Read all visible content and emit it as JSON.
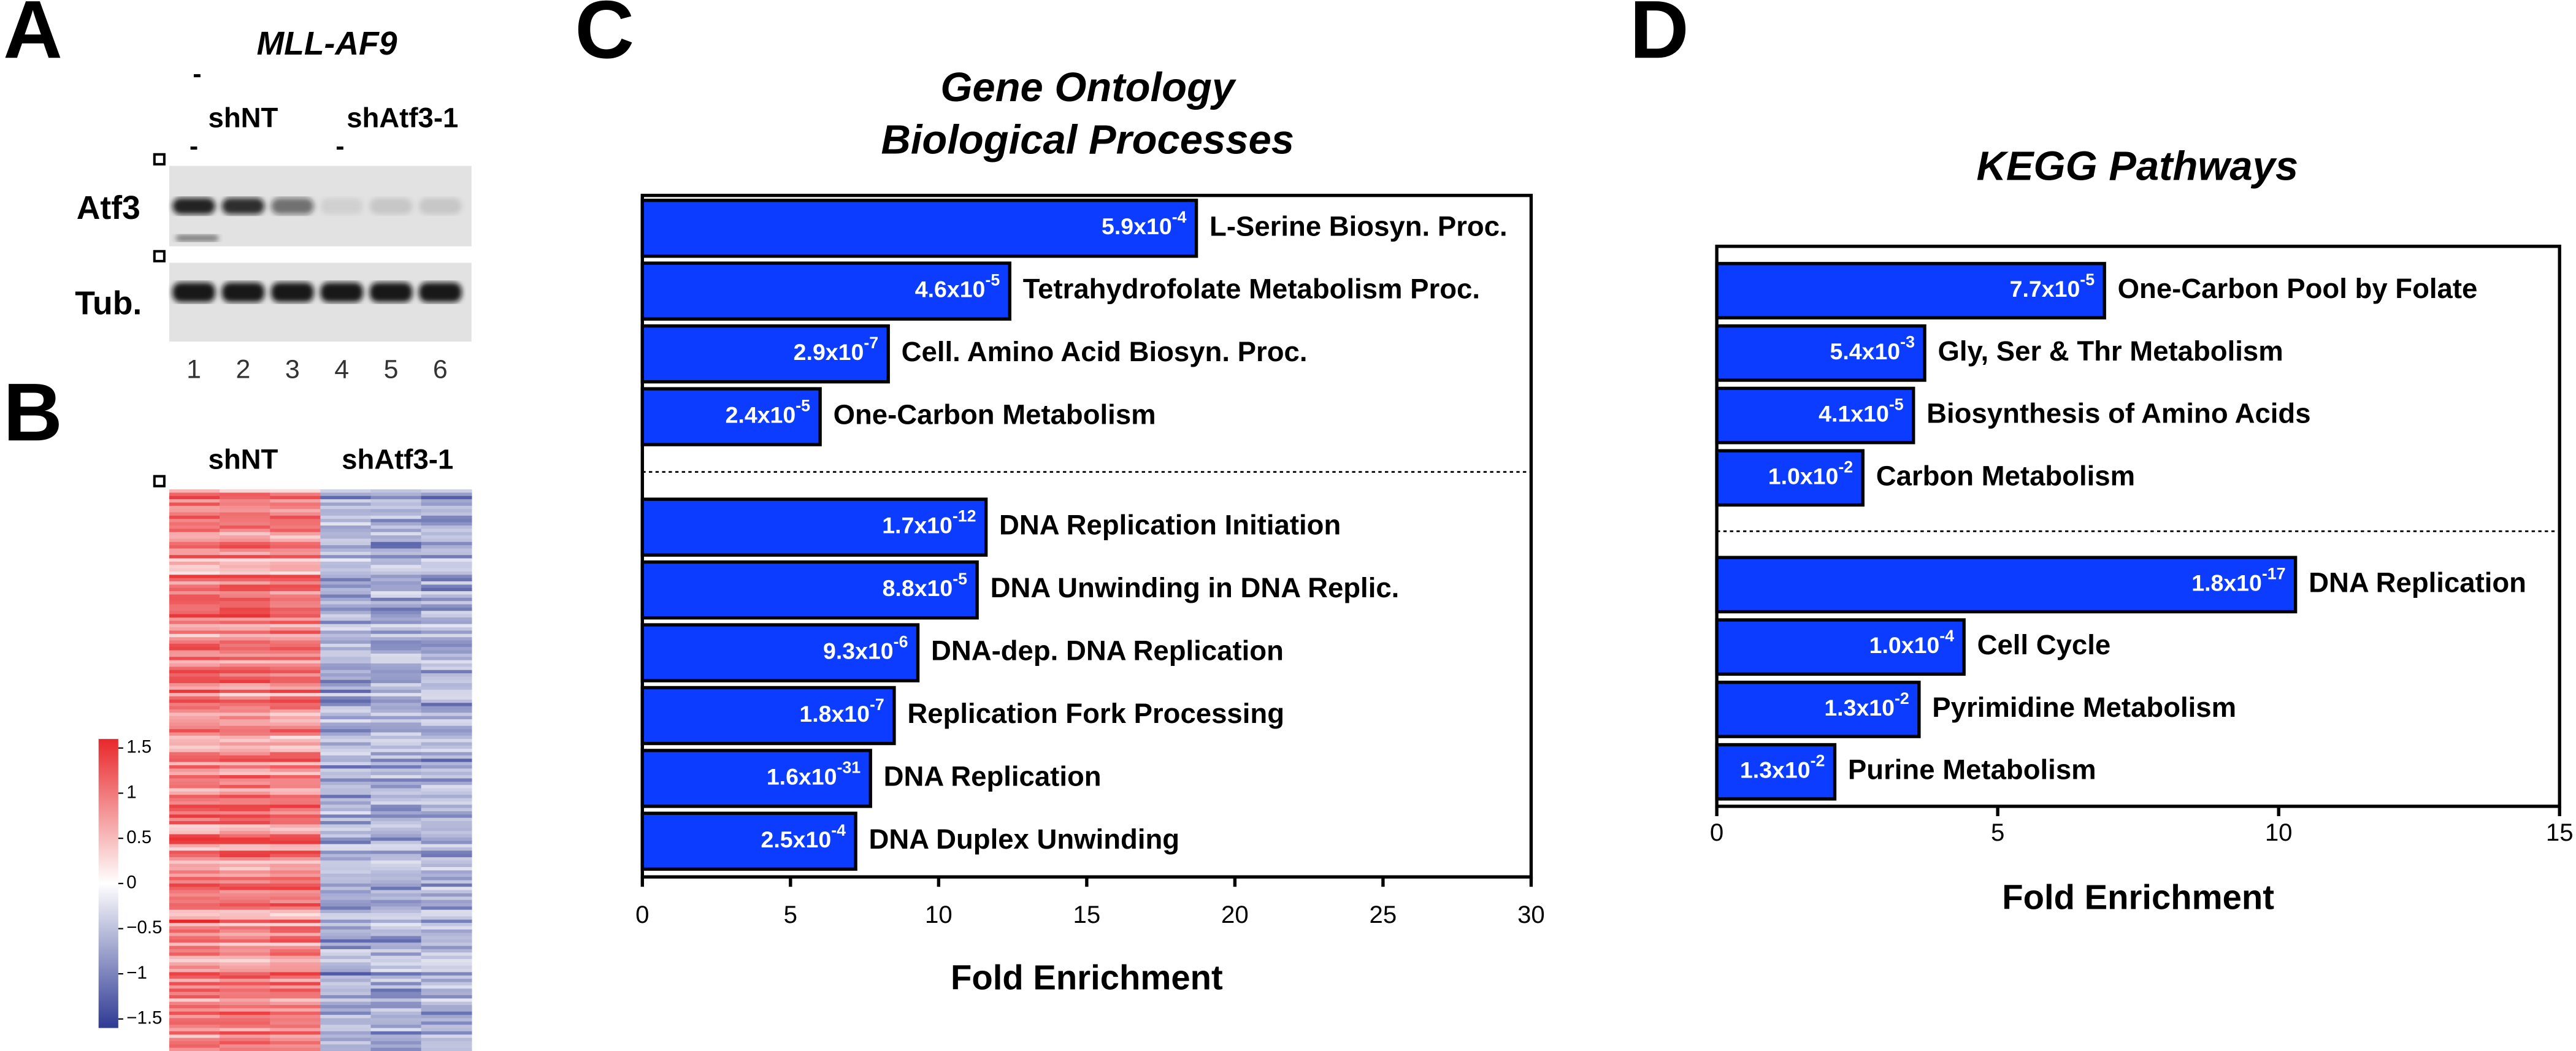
{
  "panel_letters": [
    "A",
    "B",
    "C",
    "D"
  ],
  "blot": {
    "title": "MLL-AF9",
    "groups": [
      "shNT",
      "shAtf3-1"
    ],
    "dashes": [
      "-",
      "-",
      "-"
    ],
    "rows": [
      "Atf3",
      "Tub."
    ],
    "lanes": [
      "1",
      "2",
      "3",
      "4",
      "5",
      "6"
    ]
  },
  "heatmap": {
    "columns": [
      "shNT",
      "shAtf3-1"
    ],
    "clim": [
      -1.6,
      1.6
    ],
    "colorbar_ticks": [
      1.5,
      1,
      0.5,
      0,
      {
        "value": -0.5,
        "label": "−0.5"
      },
      {
        "value": -1,
        "label": "−1"
      },
      {
        "value": -1.5,
        "label": "−1.5"
      }
    ]
  },
  "chart_data": [
    {
      "type": "bar",
      "orientation": "horizontal",
      "title": [
        "Gene Ontology",
        "Biological Processes"
      ],
      "xlabel": "Fold Enrichment",
      "xlim": [
        0,
        30
      ],
      "xticks": [
        0,
        5,
        10,
        15,
        20,
        25,
        30
      ],
      "color": "#0b3cff",
      "groups": [
        {
          "categories": [
            "L-Serine Biosyn. Proc.",
            "Tetrahydrofolate Metabolism Proc.",
            "Cell. Amino Acid Biosyn. Proc.",
            "One-Carbon Metabolism"
          ],
          "values": [
            18.7,
            12.4,
            8.3,
            6.0
          ],
          "pvalues": [
            [
              "5.9x10",
              "-4"
            ],
            [
              "4.6x10",
              "-5"
            ],
            [
              "2.9x10",
              "-7"
            ],
            [
              "2.4x10",
              "-5"
            ]
          ]
        },
        {
          "categories": [
            "DNA Replication Initiation",
            "DNA Unwinding in DNA Replic.",
            "DNA-dep. DNA Replication",
            "Replication Fork Processing",
            "DNA Replication",
            "DNA Duplex Unwinding"
          ],
          "values": [
            11.6,
            11.3,
            9.3,
            8.5,
            7.7,
            7.2
          ],
          "pvalues": [
            [
              "1.7x10",
              "-12"
            ],
            [
              "8.8x10",
              "-5"
            ],
            [
              "9.3x10",
              "-6"
            ],
            [
              "1.8x10",
              "-7"
            ],
            [
              "1.6x10",
              "-31"
            ],
            [
              "2.5x10",
              "-4"
            ]
          ]
        }
      ]
    },
    {
      "type": "bar",
      "orientation": "horizontal",
      "title": [
        "KEGG Pathways"
      ],
      "xlabel": "Fold Enrichment",
      "xlim": [
        0,
        15
      ],
      "xticks": [
        0,
        5,
        10,
        15
      ],
      "color": "#0b3cff",
      "groups": [
        {
          "categories": [
            "One-Carbon Pool by Folate",
            "Gly, Ser & Thr Metabolism",
            "Biosynthesis of Amino Acids",
            "Carbon Metabolism"
          ],
          "values": [
            6.9,
            3.7,
            3.5,
            2.6
          ],
          "pvalues": [
            [
              "7.7x10",
              "-5"
            ],
            [
              "5.4x10",
              "-3"
            ],
            [
              "4.1x10",
              "-5"
            ],
            [
              "1.0x10",
              "-2"
            ]
          ]
        },
        {
          "categories": [
            "DNA Replication",
            "Cell Cycle",
            "Pyrimidine Metabolism",
            "Purine Metabolism"
          ],
          "values": [
            10.3,
            4.4,
            3.6,
            2.1
          ],
          "pvalues": [
            [
              "1.8x10",
              "-17"
            ],
            [
              "1.0x10",
              "-4"
            ],
            [
              "1.3x10",
              "-2"
            ],
            [
              "1.3x10",
              "-2"
            ]
          ]
        }
      ]
    }
  ]
}
